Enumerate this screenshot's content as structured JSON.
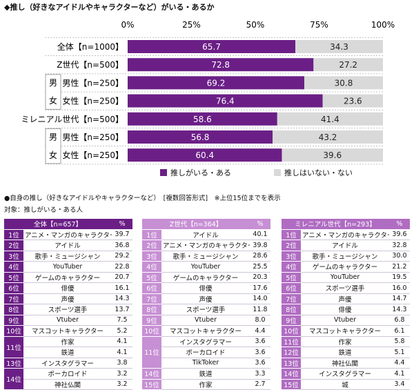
{
  "chart_data": {
    "type": "bar",
    "title": "◆推し（好きなアイドルやキャラクターなど）がいる・あるか",
    "x_ticks": [
      "0%",
      "25%",
      "50%",
      "75%",
      "100%"
    ],
    "xlim": [
      0,
      100
    ],
    "stacked": true,
    "orientation": "horizontal",
    "categories": [
      "全体【n=1000】",
      "Z世代【n=500】",
      "男性【n=250】",
      "女性【n=250】",
      "ミレニアル世代【n=500】",
      "男性【n=250】",
      "女性【n=250】"
    ],
    "series": [
      {
        "name": "推しがいる・ある",
        "color": "#6b1f86",
        "values": [
          65.7,
          72.8,
          69.2,
          76.4,
          58.6,
          56.8,
          60.4
        ]
      },
      {
        "name": "推しはいない・ない",
        "color": "#d9d9d9",
        "values": [
          34.3,
          27.2,
          30.8,
          23.6,
          41.4,
          43.2,
          39.6
        ]
      }
    ],
    "group_labels": [
      {
        "text": "男女",
        "rows": [
          2,
          3
        ]
      },
      {
        "text": "男女",
        "rows": [
          5,
          6
        ]
      }
    ],
    "legend_position": "bottom"
  },
  "section": {
    "title": "●自身の推し（好きなアイドルやキャラクターなど）　[複数回答形式]　※上位15位までを表示",
    "target": "対象：推しがいる・ある人"
  },
  "tables": [
    {
      "header": "全体【n=657】",
      "pct_header": "%",
      "rows": [
        {
          "rank": "1位",
          "item": "アニメ・マンガのキャラクター",
          "pct": "39.7"
        },
        {
          "rank": "2位",
          "item": "アイドル",
          "pct": "36.8"
        },
        {
          "rank": "3位",
          "item": "歌手・ミュージシャン",
          "pct": "29.2"
        },
        {
          "rank": "4位",
          "item": "YouTuber",
          "pct": "22.8"
        },
        {
          "rank": "5位",
          "item": "ゲームのキャラクター",
          "pct": "20.7"
        },
        {
          "rank": "6位",
          "item": "俳優",
          "pct": "16.1"
        },
        {
          "rank": "7位",
          "item": "声優",
          "pct": "14.3"
        },
        {
          "rank": "8位",
          "item": "スポーツ選手",
          "pct": "13.7"
        },
        {
          "rank": "9位",
          "item": "Vtuber",
          "pct": "7.5"
        },
        {
          "rank": "10位",
          "item": "マスコットキャラクター",
          "pct": "5.2"
        },
        {
          "rank": "11位",
          "item": "作家",
          "pct": "4.1",
          "span": 2
        },
        {
          "rank": "",
          "item": "鉄道",
          "pct": "4.1"
        },
        {
          "rank": "13位",
          "item": "インスタグラマー",
          "pct": "3.8"
        },
        {
          "rank": "14位",
          "item": "ボーカロイド",
          "pct": "3.2",
          "span": 2
        },
        {
          "rank": "",
          "item": "神社仏閣",
          "pct": "3.2"
        }
      ]
    },
    {
      "header": "Z世代【n=364】",
      "pct_header": "%",
      "rows": [
        {
          "rank": "1位",
          "item": "アイドル",
          "pct": "40.1"
        },
        {
          "rank": "2位",
          "item": "アニメ・マンガのキャラクター",
          "pct": "39.8"
        },
        {
          "rank": "3位",
          "item": "歌手・ミュージシャン",
          "pct": "28.6"
        },
        {
          "rank": "4位",
          "item": "YouTuber",
          "pct": "25.5"
        },
        {
          "rank": "5位",
          "item": "ゲームのキャラクター",
          "pct": "20.3"
        },
        {
          "rank": "6位",
          "item": "俳優",
          "pct": "17.6"
        },
        {
          "rank": "7位",
          "item": "声優",
          "pct": "14.0"
        },
        {
          "rank": "8位",
          "item": "スポーツ選手",
          "pct": "11.8"
        },
        {
          "rank": "9位",
          "item": "Vtuber",
          "pct": "8.0"
        },
        {
          "rank": "10位",
          "item": "マスコットキャラクター",
          "pct": "4.4"
        },
        {
          "rank": "11位",
          "item": "インスタグラマー",
          "pct": "3.6",
          "span": 3
        },
        {
          "rank": "",
          "item": "ボーカロイド",
          "pct": "3.6"
        },
        {
          "rank": "",
          "item": "TikToker",
          "pct": "3.6"
        },
        {
          "rank": "14位",
          "item": "鉄道",
          "pct": "3.3"
        },
        {
          "rank": "15位",
          "item": "作家",
          "pct": "2.7"
        }
      ]
    },
    {
      "header": "ミレニアル世代【n=293】",
      "pct_header": "%",
      "rows": [
        {
          "rank": "1位",
          "item": "アニメ・マンガのキャラクター",
          "pct": "39.6"
        },
        {
          "rank": "2位",
          "item": "アイドル",
          "pct": "32.8"
        },
        {
          "rank": "3位",
          "item": "歌手・ミュージシャン",
          "pct": "30.0"
        },
        {
          "rank": "4位",
          "item": "ゲームのキャラクター",
          "pct": "21.2"
        },
        {
          "rank": "5位",
          "item": "YouTuber",
          "pct": "19.5"
        },
        {
          "rank": "6位",
          "item": "スポーツ選手",
          "pct": "16.0"
        },
        {
          "rank": "7位",
          "item": "声優",
          "pct": "14.7"
        },
        {
          "rank": "8位",
          "item": "俳優",
          "pct": "14.3"
        },
        {
          "rank": "9位",
          "item": "Vtuber",
          "pct": "6.8"
        },
        {
          "rank": "10位",
          "item": "マスコットキャラクター",
          "pct": "6.1"
        },
        {
          "rank": "11位",
          "item": "作家",
          "pct": "5.8"
        },
        {
          "rank": "12位",
          "item": "鉄道",
          "pct": "5.1"
        },
        {
          "rank": "13位",
          "item": "神社仏閣",
          "pct": "4.4"
        },
        {
          "rank": "14位",
          "item": "インスタグラマー",
          "pct": "4.1"
        },
        {
          "rank": "15位",
          "item": "城",
          "pct": "3.4"
        }
      ]
    }
  ]
}
